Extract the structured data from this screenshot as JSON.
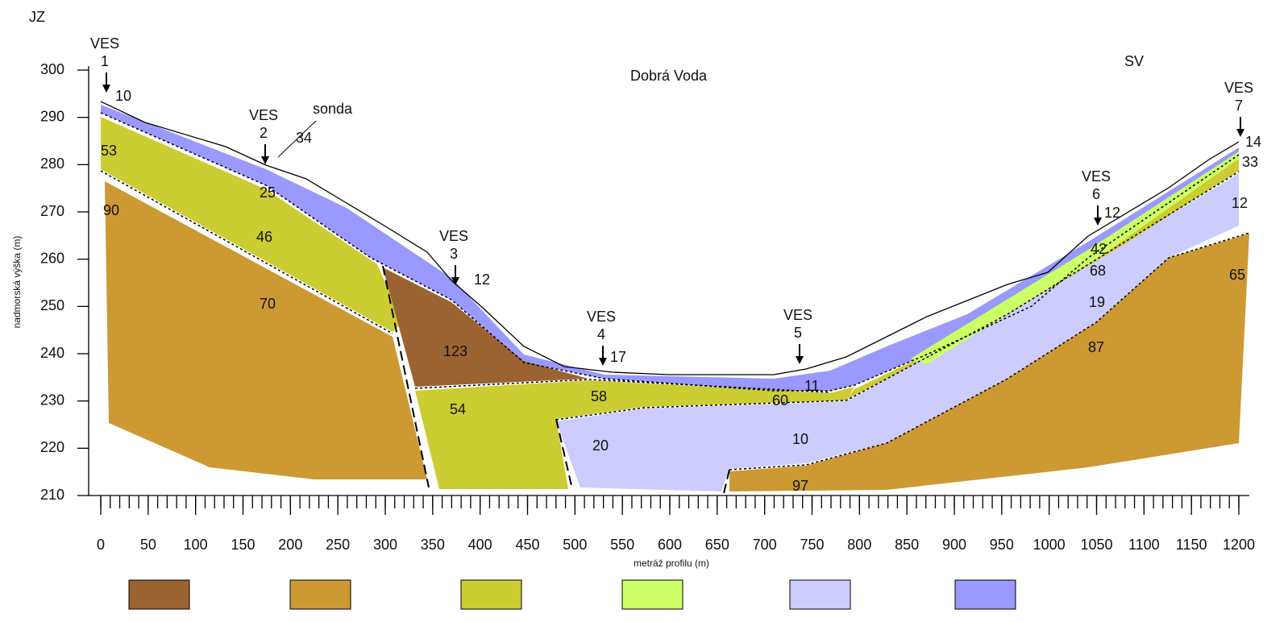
{
  "header": {
    "left": "JZ",
    "right": "SV",
    "place": "Dobrá Voda",
    "probe": "sonda"
  },
  "axes": {
    "x_label": "metráž profilu (m)",
    "y_label": "nadmorská výška (m)",
    "xlim": [
      0,
      1200
    ],
    "ylim": [
      210,
      300
    ],
    "xticks": [
      0,
      50,
      100,
      150,
      200,
      250,
      300,
      350,
      400,
      450,
      500,
      550,
      600,
      650,
      700,
      750,
      800,
      850,
      900,
      950,
      1000,
      1050,
      1100,
      1150,
      1200
    ],
    "yticks": [
      210,
      220,
      230,
      240,
      250,
      260,
      270,
      280,
      290,
      300
    ]
  },
  "ves": [
    {
      "name": "VES",
      "number": 1
    },
    {
      "name": "VES",
      "number": 2
    },
    {
      "name": "VES",
      "number": 3
    },
    {
      "name": "VES",
      "number": 4
    },
    {
      "name": "VES",
      "number": 5
    },
    {
      "name": "VES",
      "number": 6
    },
    {
      "name": "VES",
      "number": 7
    }
  ],
  "resistivities": [
    10,
    53,
    90,
    34,
    25,
    46,
    70,
    12,
    123,
    17,
    58,
    54,
    20,
    11,
    60,
    10,
    97,
    12,
    42,
    68,
    19,
    87,
    14,
    33,
    12,
    65
  ]
}
